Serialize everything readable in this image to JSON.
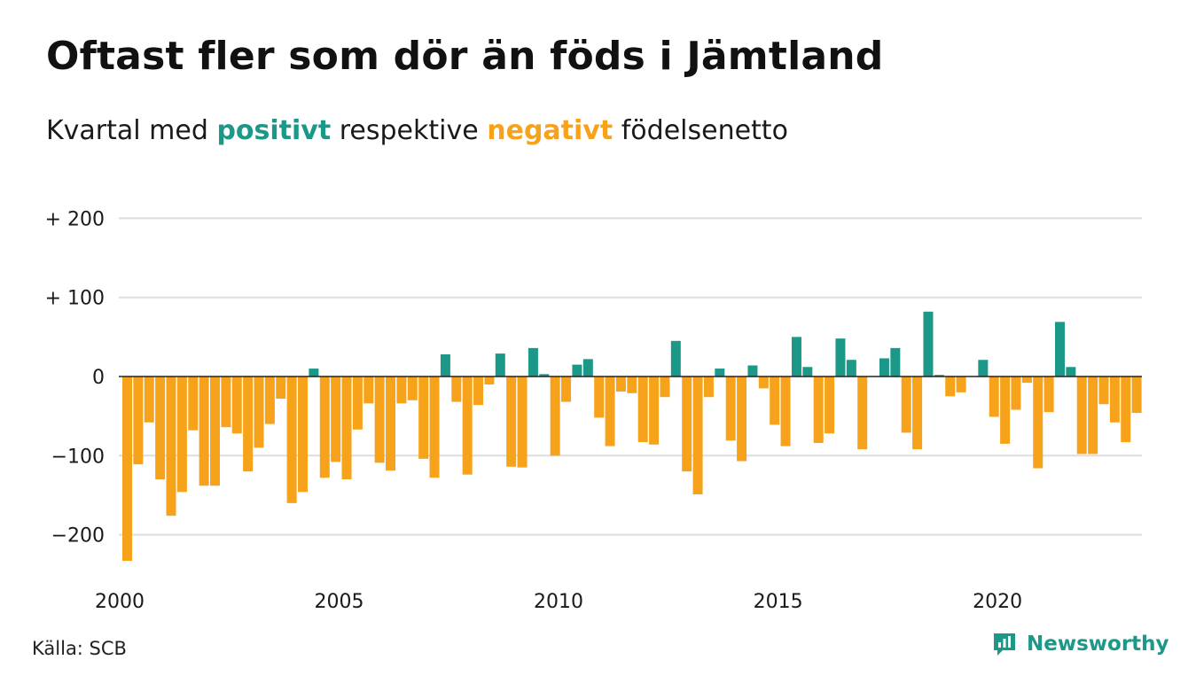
{
  "header": {
    "title": "Oftast fler som dör än föds i Jämtland",
    "subtitle_pre": "Kvartal med",
    "subtitle_positive": "positivt",
    "subtitle_mid": "respektive",
    "subtitle_negative": "negativt",
    "subtitle_post": "födelsenetto"
  },
  "footer": {
    "source": "Källa: SCB",
    "brand": "Newsworthy"
  },
  "icons": {
    "brand_logo": "bar-chart-speech-bubble-icon"
  },
  "colors": {
    "positive": "#1b9887",
    "negative": "#f7a21b",
    "grid": "#dddddd",
    "zero_line": "#222222"
  },
  "chart_data": {
    "type": "bar",
    "xlabel": "",
    "ylabel": "",
    "title": "",
    "ylim": [
      -235,
      200
    ],
    "y_ticks": [
      {
        "value": 200,
        "label": "+ 200"
      },
      {
        "value": 100,
        "label": "+ 100"
      },
      {
        "value": 0,
        "label": "0"
      },
      {
        "value": -100,
        "label": "−100"
      },
      {
        "value": -200,
        "label": "−200"
      }
    ],
    "x_ticks": [
      {
        "value": 2000,
        "label": "2000"
      },
      {
        "value": 2005,
        "label": "2005"
      },
      {
        "value": 2010,
        "label": "2010"
      },
      {
        "value": 2015,
        "label": "2015"
      },
      {
        "value": 2020,
        "label": "2020"
      }
    ],
    "grid": true,
    "first_quarter": "2000 Q1",
    "values": [
      -233,
      -111,
      -58,
      -130,
      -176,
      -146,
      -68,
      -138,
      -138,
      -64,
      -72,
      -120,
      -90,
      -60,
      -28,
      -160,
      -146,
      10,
      -128,
      -108,
      -130,
      -67,
      -34,
      -109,
      -119,
      -34,
      -30,
      -104,
      -128,
      28,
      -32,
      -124,
      -36,
      -10,
      29,
      -114,
      -115,
      36,
      3,
      -100,
      -32,
      15,
      22,
      -52,
      -88,
      -19,
      -21,
      -83,
      -86,
      -26,
      45,
      -120,
      -149,
      -26,
      10,
      -81,
      -107,
      14,
      -15,
      -61,
      -88,
      50,
      12,
      -84,
      -72,
      48,
      21,
      -92,
      0,
      23,
      36,
      -71,
      -92,
      82,
      2,
      -25,
      -20,
      0,
      21,
      -51,
      -85,
      -42,
      -8,
      -116,
      -45,
      69,
      12,
      -98,
      -98,
      -35,
      -58,
      -83,
      -46
    ]
  }
}
